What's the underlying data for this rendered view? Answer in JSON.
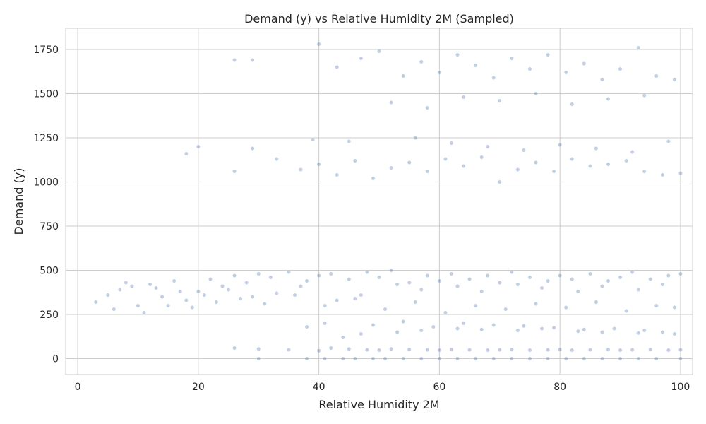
{
  "chart_data": {
    "type": "scatter",
    "title": "Demand (y) vs Relative Humidity 2M (Sampled)",
    "xlabel": "Relative Humidity 2M",
    "ylabel": "Demand (y)",
    "xlim": [
      -2,
      102
    ],
    "ylim": [
      -90,
      1870
    ],
    "x_ticks": [
      0,
      20,
      40,
      60,
      80,
      100
    ],
    "y_ticks": [
      0,
      250,
      500,
      750,
      1000,
      1250,
      1500,
      1750
    ],
    "grid": true,
    "legend": "none",
    "point_color": "#4c72b0",
    "point_alpha": 0.35,
    "series": [
      {
        "x": [
          3,
          5,
          7,
          9,
          10,
          12,
          14,
          16,
          18,
          20,
          22,
          24,
          26,
          28,
          30,
          32,
          35,
          38,
          40,
          42,
          45,
          48,
          50,
          52,
          55,
          58,
          60,
          62,
          65,
          68,
          70,
          72,
          75,
          78,
          80,
          82,
          85,
          88,
          90,
          92,
          95,
          98,
          100,
          6,
          11,
          15,
          19,
          23,
          27,
          31,
          36,
          41,
          46,
          51,
          56,
          61,
          66,
          71,
          76,
          81,
          86,
          91,
          96,
          99,
          8,
          13,
          17,
          21,
          25,
          29,
          33,
          37,
          43,
          47,
          53,
          57,
          63,
          67,
          73,
          77,
          83,
          87,
          93,
          97
        ],
        "y": [
          320,
          360,
          390,
          410,
          300,
          420,
          350,
          440,
          330,
          380,
          450,
          410,
          470,
          430,
          480,
          460,
          490,
          440,
          470,
          480,
          450,
          490,
          460,
          500,
          430,
          470,
          440,
          480,
          450,
          470,
          430,
          490,
          460,
          440,
          470,
          450,
          480,
          440,
          460,
          490,
          450,
          470,
          480,
          280,
          260,
          300,
          290,
          320,
          340,
          310,
          360,
          300,
          340,
          280,
          320,
          260,
          300,
          280,
          310,
          290,
          320,
          270,
          300,
          290,
          430,
          400,
          380,
          360,
          390,
          350,
          370,
          410,
          330,
          360,
          420,
          390,
          410,
          380,
          420,
          400,
          380,
          410,
          390,
          420
        ]
      },
      {
        "x": [
          26,
          30,
          35,
          40,
          42,
          45,
          48,
          50,
          52,
          55,
          58,
          60,
          62,
          65,
          68,
          70,
          72,
          75,
          78,
          80,
          82,
          85,
          88,
          90,
          92,
          95,
          98,
          100,
          44,
          47,
          53,
          57,
          63,
          67,
          73,
          77,
          83,
          87,
          93,
          97,
          99,
          38,
          41,
          49,
          54,
          59,
          64,
          69,
          74,
          79,
          84,
          89,
          94
        ],
        "y": [
          60,
          55,
          50,
          45,
          60,
          55,
          50,
          48,
          55,
          52,
          50,
          48,
          52,
          50,
          48,
          50,
          52,
          48,
          50,
          52,
          48,
          50,
          52,
          48,
          50,
          52,
          48,
          50,
          120,
          140,
          150,
          160,
          170,
          165,
          160,
          170,
          155,
          150,
          145,
          150,
          140,
          180,
          200,
          190,
          210,
          180,
          200,
          190,
          185,
          175,
          165,
          170,
          160
        ]
      },
      {
        "x": [
          30,
          38,
          41,
          44,
          46,
          49,
          51,
          54,
          57,
          60,
          63,
          66,
          69,
          72,
          75,
          78,
          81,
          84,
          87,
          90,
          93,
          96,
          100
        ],
        "y": [
          0,
          0,
          0,
          0,
          0,
          0,
          0,
          0,
          0,
          0,
          0,
          0,
          0,
          0,
          0,
          0,
          0,
          0,
          0,
          0,
          0,
          0,
          0
        ]
      },
      {
        "x": [
          18,
          20,
          26,
          29,
          33,
          37,
          40,
          43,
          46,
          49,
          52,
          55,
          58,
          61,
          64,
          67,
          70,
          73,
          76,
          79,
          82,
          85,
          88,
          91,
          94,
          97,
          100,
          39,
          45,
          56,
          62,
          68,
          74,
          80,
          86,
          92,
          98
        ],
        "y": [
          1160,
          1200,
          1060,
          1190,
          1130,
          1070,
          1100,
          1040,
          1120,
          1020,
          1080,
          1110,
          1060,
          1130,
          1090,
          1140,
          1000,
          1070,
          1110,
          1060,
          1130,
          1090,
          1100,
          1120,
          1060,
          1040,
          1050,
          1240,
          1230,
          1250,
          1220,
          1200,
          1180,
          1210,
          1190,
          1170,
          1230
        ]
      },
      {
        "x": [
          26,
          29,
          40,
          43,
          47,
          50,
          54,
          57,
          60,
          63,
          66,
          69,
          72,
          75,
          78,
          81,
          84,
          87,
          90,
          93,
          96,
          99,
          52,
          58,
          64,
          70,
          76,
          82,
          88,
          94
        ],
        "y": [
          1690,
          1690,
          1780,
          1650,
          1700,
          1740,
          1600,
          1680,
          1620,
          1720,
          1660,
          1590,
          1700,
          1640,
          1720,
          1620,
          1670,
          1580,
          1640,
          1760,
          1600,
          1580,
          1450,
          1420,
          1480,
          1460,
          1500,
          1440,
          1470,
          1490
        ]
      }
    ]
  }
}
